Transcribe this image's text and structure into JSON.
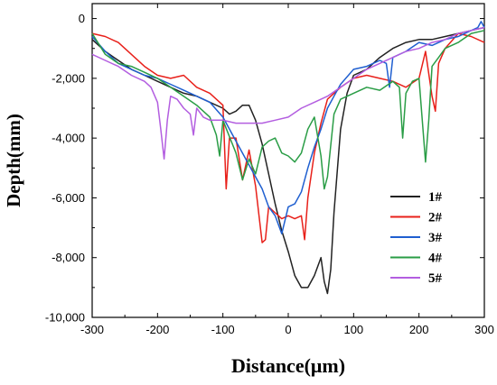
{
  "chart_data": {
    "type": "line",
    "xlabel": "Distance(μm)",
    "ylabel": "Depth(mm)",
    "xlim": [
      -300,
      300
    ],
    "ylim": [
      -10000,
      500
    ],
    "xticks": [
      -300,
      -200,
      -100,
      0,
      100,
      200,
      300
    ],
    "xtick_labels": [
      "-300",
      "-200",
      "-100",
      "0",
      "100",
      "200",
      "300"
    ],
    "yticks": [
      0,
      -2000,
      -4000,
      -6000,
      -8000,
      -10000
    ],
    "ytick_labels": [
      "0",
      "-2,000",
      "-4,000",
      "-6,000",
      "-8,000",
      "-10,000"
    ],
    "grid": false,
    "legend_position": "center-right",
    "series": [
      {
        "name": "1#",
        "color": "#222222",
        "x": [
          -300,
          -280,
          -260,
          -240,
          -220,
          -200,
          -180,
          -160,
          -140,
          -120,
          -100,
          -90,
          -80,
          -70,
          -60,
          -50,
          -40,
          -30,
          -20,
          -10,
          0,
          10,
          20,
          30,
          40,
          50,
          55,
          60,
          65,
          70,
          80,
          90,
          100,
          120,
          140,
          160,
          180,
          200,
          220,
          240,
          260,
          280,
          300
        ],
        "y": [
          -700,
          -1100,
          -1400,
          -1700,
          -1900,
          -2100,
          -2300,
          -2500,
          -2600,
          -2800,
          -3000,
          -3200,
          -3100,
          -2900,
          -2900,
          -3400,
          -4200,
          -5200,
          -6200,
          -7100,
          -7800,
          -8600,
          -9000,
          -9000,
          -8600,
          -8000,
          -8800,
          -9200,
          -8400,
          -6500,
          -3700,
          -2500,
          -1900,
          -1700,
          -1300,
          -1000,
          -800,
          -700,
          -700,
          -600,
          -500,
          -400,
          -300
        ]
      },
      {
        "name": "2#",
        "color": "#e8201a",
        "x": [
          -300,
          -280,
          -260,
          -240,
          -220,
          -200,
          -180,
          -160,
          -140,
          -120,
          -100,
          -95,
          -90,
          -80,
          -70,
          -60,
          -50,
          -40,
          -35,
          -30,
          -20,
          -10,
          0,
          10,
          20,
          25,
          30,
          40,
          50,
          60,
          80,
          100,
          120,
          140,
          160,
          180,
          200,
          210,
          220,
          225,
          230,
          240,
          260,
          280,
          300
        ],
        "y": [
          -500,
          -600,
          -800,
          -1200,
          -1600,
          -1900,
          -2000,
          -1900,
          -2300,
          -2500,
          -2900,
          -5700,
          -4000,
          -4000,
          -5400,
          -4400,
          -5600,
          -7500,
          -7400,
          -6300,
          -6500,
          -6700,
          -6600,
          -6700,
          -6600,
          -7400,
          -6000,
          -4500,
          -3500,
          -2700,
          -2300,
          -2000,
          -1900,
          -2000,
          -2100,
          -2300,
          -2000,
          -1100,
          -2600,
          -3100,
          -1500,
          -1000,
          -500,
          -600,
          -800
        ]
      },
      {
        "name": "3#",
        "color": "#1f5fd0",
        "x": [
          -300,
          -280,
          -260,
          -240,
          -220,
          -200,
          -180,
          -160,
          -140,
          -120,
          -100,
          -80,
          -60,
          -40,
          -30,
          -20,
          -10,
          0,
          10,
          20,
          30,
          40,
          50,
          60,
          70,
          80,
          100,
          120,
          140,
          150,
          155,
          160,
          180,
          200,
          220,
          240,
          260,
          280,
          290,
          295,
          300
        ],
        "y": [
          -600,
          -1100,
          -1500,
          -1700,
          -1900,
          -2000,
          -2200,
          -2400,
          -2600,
          -2800,
          -3300,
          -4100,
          -4900,
          -5700,
          -6300,
          -6600,
          -7200,
          -6300,
          -6200,
          -5800,
          -5000,
          -4300,
          -3700,
          -3000,
          -2600,
          -2200,
          -1700,
          -1600,
          -1400,
          -1500,
          -2300,
          -1300,
          -1100,
          -800,
          -900,
          -700,
          -600,
          -400,
          -300,
          -100,
          -300
        ]
      },
      {
        "name": "4#",
        "color": "#2a9d46",
        "x": [
          -300,
          -280,
          -260,
          -240,
          -220,
          -200,
          -180,
          -160,
          -140,
          -120,
          -110,
          -105,
          -100,
          -80,
          -70,
          -60,
          -50,
          -40,
          -30,
          -20,
          -10,
          0,
          10,
          20,
          30,
          40,
          50,
          55,
          60,
          70,
          80,
          100,
          120,
          140,
          160,
          170,
          175,
          180,
          190,
          200,
          210,
          215,
          220,
          230,
          240,
          260,
          280,
          300
        ],
        "y": [
          -500,
          -1200,
          -1500,
          -1600,
          -1800,
          -2000,
          -2300,
          -2600,
          -2900,
          -3300,
          -3900,
          -4600,
          -3400,
          -4500,
          -5400,
          -4700,
          -5200,
          -4300,
          -4100,
          -4000,
          -4500,
          -4600,
          -4800,
          -4500,
          -3700,
          -3300,
          -4600,
          -5700,
          -5300,
          -3200,
          -2700,
          -2500,
          -2300,
          -2400,
          -2100,
          -2300,
          -4000,
          -2500,
          -2100,
          -2000,
          -4800,
          -3400,
          -1600,
          -1300,
          -1000,
          -800,
          -500,
          -400
        ]
      },
      {
        "name": "5#",
        "color": "#b35ee0",
        "x": [
          -300,
          -280,
          -260,
          -240,
          -220,
          -210,
          -200,
          -195,
          -190,
          -185,
          -180,
          -170,
          -160,
          -150,
          -145,
          -140,
          -130,
          -120,
          -100,
          -80,
          -60,
          -40,
          -20,
          0,
          20,
          40,
          60,
          80,
          100,
          120,
          140,
          160,
          180,
          200,
          220,
          240,
          260,
          280,
          300
        ],
        "y": [
          -1200,
          -1400,
          -1600,
          -1900,
          -2100,
          -2300,
          -2800,
          -3700,
          -4700,
          -3400,
          -2600,
          -2700,
          -3000,
          -3200,
          -3900,
          -3000,
          -3300,
          -3400,
          -3400,
          -3500,
          -3500,
          -3500,
          -3400,
          -3300,
          -3000,
          -2800,
          -2600,
          -2300,
          -2000,
          -1700,
          -1500,
          -1300,
          -1100,
          -1000,
          -800,
          -700,
          -500,
          -400,
          -300
        ]
      }
    ]
  }
}
